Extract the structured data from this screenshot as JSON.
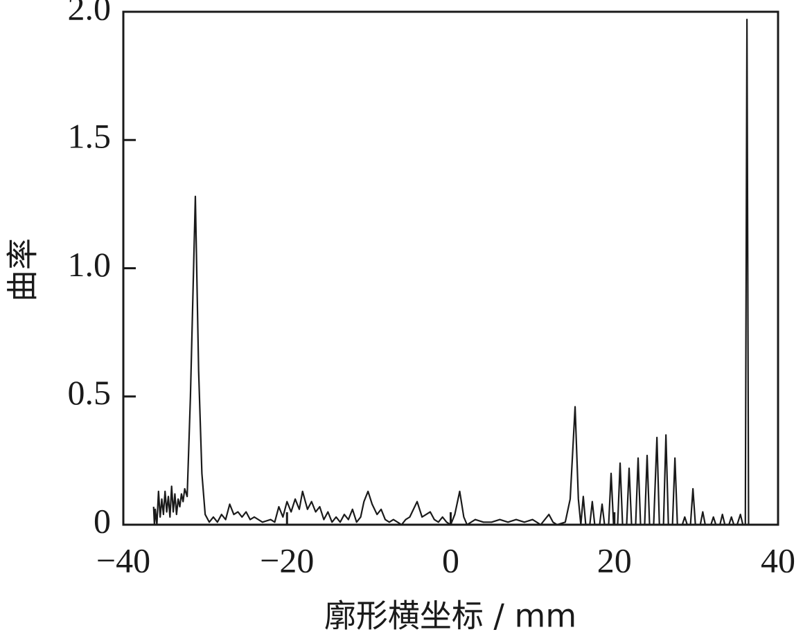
{
  "chart_data": {
    "type": "line",
    "x_label": "廓形横坐标 / mm",
    "y_label": "曲率",
    "xlim": [
      -40,
      40
    ],
    "ylim": [
      0,
      2.0
    ],
    "xticks": [
      {
        "value": -40,
        "label": "−40"
      },
      {
        "value": -20,
        "label": "−20"
      },
      0,
      20,
      40
    ],
    "yticks": [
      0,
      0.5,
      {
        "value": 1.0,
        "label": "1.0"
      },
      1.5,
      {
        "value": 2.0,
        "label": "2.0"
      }
    ],
    "series": [
      {
        "color": "#1a1a1a",
        "x": [
          -36.3,
          -36.2,
          -36.1,
          -35.9,
          -35.7,
          -35.5,
          -35.3,
          -35.1,
          -34.9,
          -34.7,
          -34.5,
          -34.3,
          -34.1,
          -33.9,
          -33.7,
          -33.5,
          -33.3,
          -33.1,
          -32.9,
          -32.7,
          -32.5,
          -32.2,
          -31.8,
          -31.2,
          -30.8,
          -30.4,
          -30.0,
          -29.5,
          -29.0,
          -28.5,
          -28.0,
          -27.5,
          -27.0,
          -26.5,
          -26.0,
          -25.5,
          -25.0,
          -24.5,
          -24.0,
          -23.0,
          -22.0,
          -21.5,
          -21.0,
          -20.5,
          -20.0,
          -19.5,
          -19.0,
          -18.5,
          -18.1,
          -17.5,
          -17.0,
          -16.5,
          -16.0,
          -15.5,
          -15.0,
          -14.5,
          -14.0,
          -13.5,
          -13.0,
          -12.5,
          -12.0,
          -11.5,
          -11.0,
          -10.6,
          -10.1,
          -9.6,
          -9.0,
          -8.5,
          -8.0,
          -7.5,
          -7.0,
          -6.0,
          -5.5,
          -5.0,
          -4.1,
          -3.5,
          -3.0,
          -2.5,
          -2.0,
          -1.5,
          -1.0,
          -0.5,
          0.0,
          0.5,
          1.1,
          1.6,
          2.0,
          3.0,
          4.0,
          5.0,
          6.0,
          7.0,
          8.0,
          9.0,
          10.0,
          11.0,
          12.0,
          12.5,
          13.0,
          14.0,
          14.6,
          15.2,
          15.6,
          15.9,
          16.2,
          16.5,
          17.0,
          17.3,
          17.6,
          18.2,
          18.5,
          18.8,
          19.3,
          19.6,
          19.9,
          20.4,
          20.7,
          21.0,
          21.5,
          21.8,
          22.1,
          22.6,
          22.9,
          23.2,
          23.7,
          24.0,
          24.3,
          24.8,
          25.2,
          25.5,
          26.0,
          26.3,
          26.6,
          27.1,
          27.4,
          27.7,
          28.3,
          28.6,
          28.9,
          29.3,
          29.6,
          29.9,
          30.5,
          30.8,
          31.1,
          31.8,
          32.1,
          32.4,
          32.9,
          33.2,
          33.5,
          34.0,
          34.3,
          34.6,
          35.0,
          35.4,
          35.7,
          36.0,
          36.2,
          36.4
        ],
        "values": [
          0.07,
          0.0,
          0.06,
          0.0,
          0.13,
          0.03,
          0.1,
          0.04,
          0.13,
          0.05,
          0.11,
          0.03,
          0.15,
          0.05,
          0.12,
          0.04,
          0.1,
          0.07,
          0.12,
          0.09,
          0.14,
          0.11,
          0.5,
          1.28,
          0.6,
          0.2,
          0.04,
          0.01,
          0.03,
          0.01,
          0.04,
          0.02,
          0.08,
          0.04,
          0.05,
          0.03,
          0.05,
          0.02,
          0.03,
          0.01,
          0.02,
          0.01,
          0.07,
          0.03,
          0.09,
          0.05,
          0.1,
          0.06,
          0.13,
          0.06,
          0.09,
          0.05,
          0.07,
          0.02,
          0.05,
          0.01,
          0.03,
          0.01,
          0.04,
          0.02,
          0.06,
          0.01,
          0.03,
          0.09,
          0.13,
          0.08,
          0.04,
          0.06,
          0.02,
          0.01,
          0.02,
          0.0,
          0.02,
          0.03,
          0.09,
          0.03,
          0.04,
          0.05,
          0.02,
          0.01,
          0.03,
          0.01,
          0.0,
          0.04,
          0.13,
          0.03,
          0.0,
          0.02,
          0.01,
          0.01,
          0.02,
          0.01,
          0.02,
          0.01,
          0.02,
          0.0,
          0.04,
          0.01,
          0.0,
          0.01,
          0.1,
          0.46,
          0.1,
          0.0,
          0.11,
          0.0,
          0.0,
          0.09,
          0.0,
          0.0,
          0.08,
          0.0,
          0.0,
          0.2,
          0.0,
          0.0,
          0.24,
          0.0,
          0.0,
          0.22,
          0.0,
          0.0,
          0.26,
          0.0,
          0.0,
          0.27,
          0.0,
          0.0,
          0.34,
          0.0,
          0.0,
          0.35,
          0.0,
          0.0,
          0.26,
          0.0,
          0.0,
          0.03,
          0.0,
          0.0,
          0.14,
          0.0,
          0.0,
          0.05,
          0.0,
          0.0,
          0.03,
          0.0,
          0.0,
          0.04,
          0.0,
          0.0,
          0.03,
          0.0,
          0.0,
          0.04,
          0.0,
          0.0,
          1.97,
          0.0
        ]
      }
    ]
  }
}
